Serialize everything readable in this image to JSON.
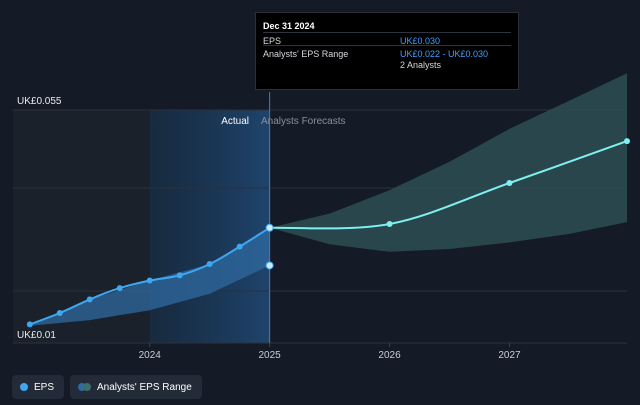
{
  "tooltip": {
    "date": "Dec 31 2024",
    "rows": [
      {
        "label": "EPS",
        "value": "UK£0.030"
      },
      {
        "label": "Analysts' EPS Range",
        "value": "UK£0.022 - UK£0.030"
      }
    ],
    "analysts": "2 Analysts"
  },
  "sections": {
    "actual": "Actual",
    "forecast": "Analysts Forecasts"
  },
  "legend": {
    "eps": "EPS",
    "range": "Analysts' EPS Range"
  },
  "colors": {
    "background": "#151b26",
    "actual_shade": "#1f4670",
    "eps_line": "#3ea7f2",
    "forecast_line": "#7ff0f0",
    "forecast_band": "#2c4e52",
    "past_band": "#2f6aa0"
  },
  "chart_data": {
    "type": "line",
    "y_labels": [
      "UK£0.055",
      "UK£0.01"
    ],
    "ylim": [
      0.01,
      0.055
    ],
    "x_tick_labels": [
      "2024",
      "2025",
      "2026",
      "2027"
    ],
    "x_ticks": [
      2024.0,
      2025.0,
      2026.0,
      2027.0
    ],
    "xlim": [
      2022.86,
      2027.98
    ],
    "divider_x": 2025.0,
    "series": [
      {
        "name": "EPS",
        "x": [
          2023.0,
          2023.25,
          2023.5,
          2023.75,
          2024.0,
          2024.25,
          2024.5,
          2024.75,
          2025.0
        ],
        "y": [
          0.0095,
          0.0119,
          0.0148,
          0.0172,
          0.0188,
          0.0199,
          0.0223,
          0.026,
          0.03
        ]
      },
      {
        "name": "EPS forecast",
        "x": [
          2025.0,
          2026.0,
          2027.0,
          2027.98
        ],
        "y": [
          0.03,
          0.0308,
          0.0395,
          0.0484
        ]
      }
    ],
    "past_range": {
      "x": [
        2023.0,
        2023.5,
        2024.0,
        2024.5,
        2025.0
      ],
      "lower": [
        0.0092,
        0.0104,
        0.0125,
        0.016,
        0.022
      ],
      "upper": [
        0.0095,
        0.0148,
        0.0188,
        0.0223,
        0.03
      ]
    },
    "forecast_range": {
      "x": [
        2025.0,
        2025.5,
        2026.0,
        2026.5,
        2027.0,
        2027.5,
        2027.98
      ],
      "lower": [
        0.03,
        0.0265,
        0.0249,
        0.0255,
        0.0269,
        0.0287,
        0.0312
      ],
      "upper": [
        0.03,
        0.033,
        0.038,
        0.044,
        0.051,
        0.057,
        0.0628
      ]
    },
    "extra_points": [
      {
        "x": 2025.0,
        "y": 0.022
      }
    ]
  }
}
